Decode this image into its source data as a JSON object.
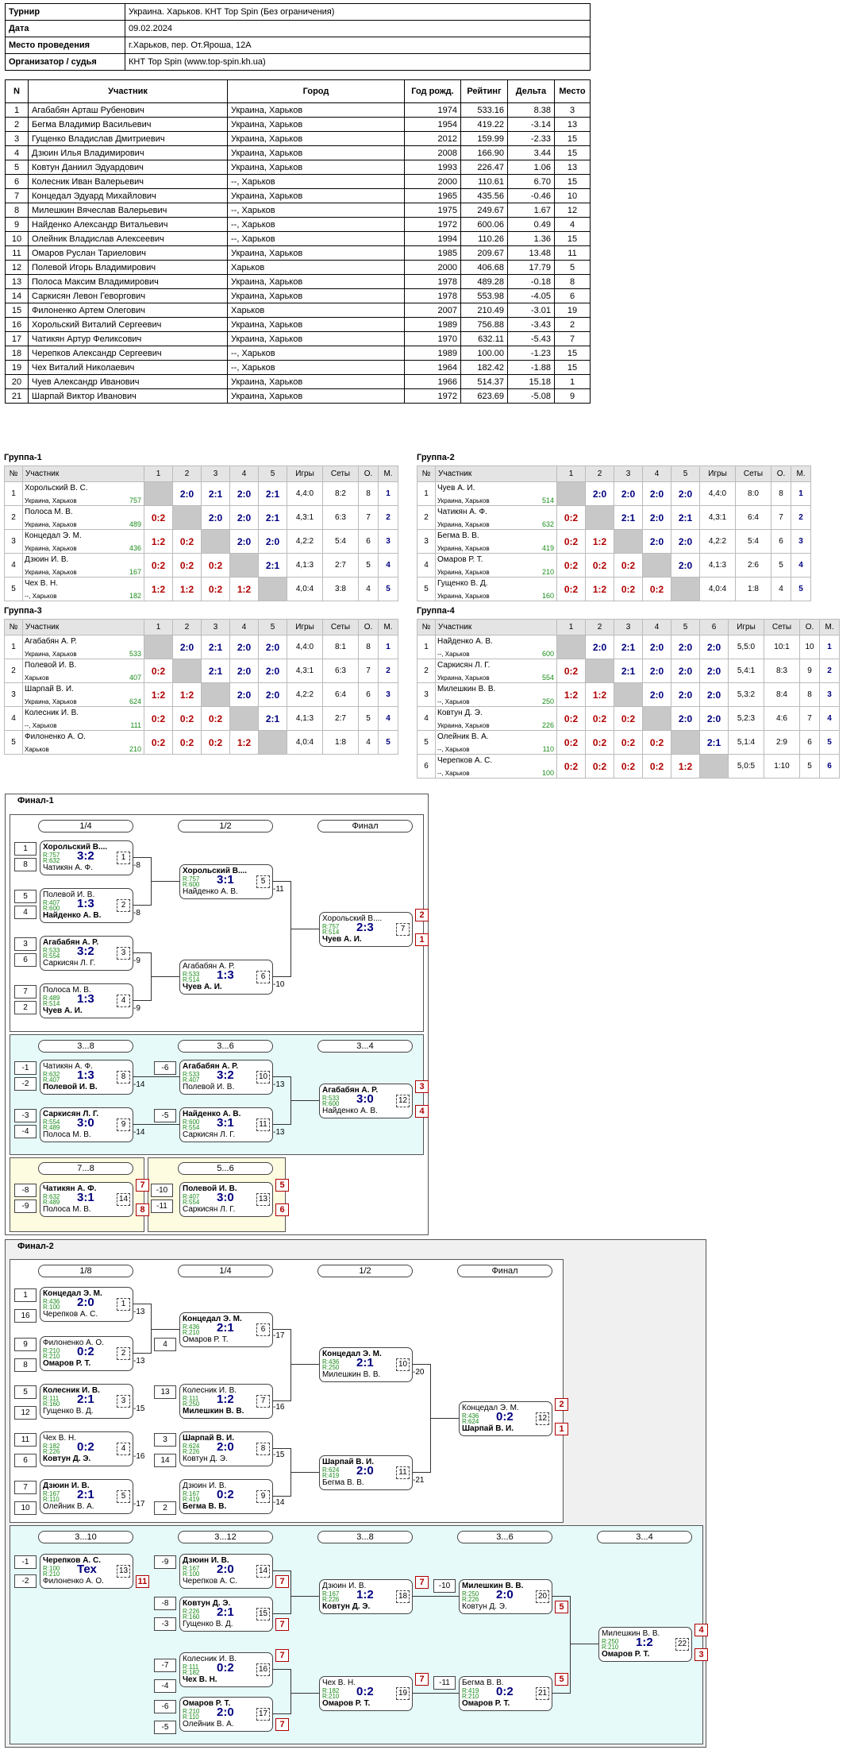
{
  "info": [
    {
      "k": "Турнир",
      "v": "Украина. Харьков. КНТ Top Spin (Без ограничения)"
    },
    {
      "k": "Дата",
      "v": "09.02.2024"
    },
    {
      "k": "Место проведения",
      "v": "г.Харьков, пер. От.Ярошa, 12А"
    },
    {
      "k": "Организатор / судья",
      "v": "КНТ Top Spin (www.top-spin.kh.ua)"
    }
  ],
  "list_headers": [
    "N",
    "Участник",
    "Город",
    "Год рожд.",
    "Рейтинг",
    "Дельта",
    "Место"
  ],
  "players": [
    [
      "1",
      "Агабабян Арташ Рубенович",
      "Украина, Харьков",
      "1974",
      "533.16",
      "8.38",
      "3"
    ],
    [
      "2",
      "Бегма Владимир Васильевич",
      "Украина, Харьков",
      "1954",
      "419.22",
      "-3.14",
      "13"
    ],
    [
      "3",
      "Гущенко Владислав Дмитриевич",
      "Украина, Харьков",
      "2012",
      "159.99",
      "-2.33",
      "15"
    ],
    [
      "4",
      "Дзюин Илья Владимирович",
      "Украина, Харьков",
      "2008",
      "166.90",
      "3.44",
      "15"
    ],
    [
      "5",
      "Ковтун Даниил Эдуардович",
      "Украина, Харьков",
      "1993",
      "226.47",
      "1.06",
      "13"
    ],
    [
      "6",
      "Колесник Иван Валерьевич",
      "--, Харьков",
      "2000",
      "110.61",
      "6.70",
      "15"
    ],
    [
      "7",
      "Концедал Эдуард Михайлович",
      "Украина, Харьков",
      "1965",
      "435.56",
      "-0.46",
      "10"
    ],
    [
      "8",
      "Милешкин Вячеслав Валерьевич",
      "--, Харьков",
      "1975",
      "249.67",
      "1.67",
      "12"
    ],
    [
      "9",
      "Найденко Александр Витальевич",
      "--, Харьков",
      "1972",
      "600.06",
      "0.49",
      "4"
    ],
    [
      "10",
      "Олейник Владислав Алексеевич",
      "--, Харьков",
      "1994",
      "110.26",
      "1.36",
      "15"
    ],
    [
      "11",
      "Омаров Руслан Тариелович",
      "Украина, Харьков",
      "1985",
      "209.67",
      "13.48",
      "11"
    ],
    [
      "12",
      "Полевой Игорь Владимирович",
      "Харьков",
      "2000",
      "406.68",
      "17.79",
      "5"
    ],
    [
      "13",
      "Полоса Максим Владимирович",
      "Украина, Харьков",
      "1978",
      "489.28",
      "-0.18",
      "8"
    ],
    [
      "14",
      "Саркисян Левон Геворгович",
      "Украина, Харьков",
      "1978",
      "553.98",
      "-4.05",
      "6"
    ],
    [
      "15",
      "Филоненко Артем Олегович",
      "Харьков",
      "2007",
      "210.49",
      "-3.01",
      "19"
    ],
    [
      "16",
      "Хорольский Виталий Сергеевич",
      "Украина, Харьков",
      "1989",
      "756.88",
      "-3.43",
      "2"
    ],
    [
      "17",
      "Чатикян Артур Феликсович",
      "Украина, Харьков",
      "1970",
      "632.11",
      "-5.43",
      "7"
    ],
    [
      "18",
      "Черепков Александр Сергеевич",
      "--, Харьков",
      "1989",
      "100.00",
      "-1.23",
      "15"
    ],
    [
      "19",
      "Чех Виталий Николаевич",
      "--, Харьков",
      "1964",
      "182.42",
      "-1.88",
      "15"
    ],
    [
      "20",
      "Чуев Александр Иванович",
      "Украина, Харьков",
      "1966",
      "514.37",
      "15.18",
      "1"
    ],
    [
      "21",
      "Шарпай Виктор Иванович",
      "Украина, Харьков",
      "1972",
      "623.69",
      "-5.08",
      "9"
    ]
  ],
  "group_headers": {
    "no": "№",
    "name": "Участник",
    "games": "Игры",
    "sets": "Сеты",
    "pts": "О.",
    "place": "М."
  },
  "groups": [
    {
      "title": "Группа-1",
      "rows": [
        {
          "n": "1",
          "name": "Хорольский В. С.",
          "city": "Украина, Харьков",
          "r": "757",
          "sc": [
            "x",
            "2:0",
            "2:1",
            "2:0",
            "2:1"
          ],
          "g": "4,4:0",
          "s": "8:2",
          "o": "8",
          "m": "1"
        },
        {
          "n": "2",
          "name": "Полоса М. В.",
          "city": "Украина, Харьков",
          "r": "489",
          "sc": [
            "0:2",
            "x",
            "2:0",
            "2:0",
            "2:1"
          ],
          "g": "4,3:1",
          "s": "6:3",
          "o": "7",
          "m": "2"
        },
        {
          "n": "3",
          "name": "Концедал Э. М.",
          "city": "Украина, Харьков",
          "r": "436",
          "sc": [
            "1:2",
            "0:2",
            "x",
            "2:0",
            "2:0"
          ],
          "g": "4,2:2",
          "s": "5:4",
          "o": "6",
          "m": "3"
        },
        {
          "n": "4",
          "name": "Дзюин И. В.",
          "city": "Украина, Харьков",
          "r": "167",
          "sc": [
            "0:2",
            "0:2",
            "0:2",
            "x",
            "2:1"
          ],
          "g": "4,1:3",
          "s": "2:7",
          "o": "5",
          "m": "4"
        },
        {
          "n": "5",
          "name": "Чех В. Н.",
          "city": "--, Харьков",
          "r": "182",
          "sc": [
            "1:2",
            "1:2",
            "0:2",
            "1:2",
            "x"
          ],
          "g": "4,0:4",
          "s": "3:8",
          "o": "4",
          "m": "5"
        }
      ]
    },
    {
      "title": "Группа-2",
      "rows": [
        {
          "n": "1",
          "name": "Чуев А. И.",
          "city": "Украина, Харьков",
          "r": "514",
          "sc": [
            "x",
            "2:0",
            "2:0",
            "2:0",
            "2:0"
          ],
          "g": "4,4:0",
          "s": "8:0",
          "o": "8",
          "m": "1"
        },
        {
          "n": "2",
          "name": "Чатикян А. Ф.",
          "city": "Украина, Харьков",
          "r": "632",
          "sc": [
            "0:2",
            "x",
            "2:1",
            "2:0",
            "2:1"
          ],
          "g": "4,3:1",
          "s": "6:4",
          "o": "7",
          "m": "2"
        },
        {
          "n": "3",
          "name": "Бегма В. В.",
          "city": "Украина, Харьков",
          "r": "419",
          "sc": [
            "0:2",
            "1:2",
            "x",
            "2:0",
            "2:0"
          ],
          "g": "4,2:2",
          "s": "5:4",
          "o": "6",
          "m": "3"
        },
        {
          "n": "4",
          "name": "Омаров Р. Т.",
          "city": "Украина, Харьков",
          "r": "210",
          "sc": [
            "0:2",
            "0:2",
            "0:2",
            "x",
            "2:0"
          ],
          "g": "4,1:3",
          "s": "2:6",
          "o": "5",
          "m": "4"
        },
        {
          "n": "5",
          "name": "Гущенко В. Д.",
          "city": "Украина, Харьков",
          "r": "160",
          "sc": [
            "0:2",
            "1:2",
            "0:2",
            "0:2",
            "x"
          ],
          "g": "4,0:4",
          "s": "1:8",
          "o": "4",
          "m": "5"
        }
      ]
    },
    {
      "title": "Группа-3",
      "rows": [
        {
          "n": "1",
          "name": "Агабабян А. Р.",
          "city": "Украина, Харьков",
          "r": "533",
          "sc": [
            "x",
            "2:0",
            "2:1",
            "2:0",
            "2:0"
          ],
          "g": "4,4:0",
          "s": "8:1",
          "o": "8",
          "m": "1"
        },
        {
          "n": "2",
          "name": "Полевой И. В.",
          "city": "Харьков",
          "r": "407",
          "sc": [
            "0:2",
            "x",
            "2:1",
            "2:0",
            "2:0"
          ],
          "g": "4,3:1",
          "s": "6:3",
          "o": "7",
          "m": "2"
        },
        {
          "n": "3",
          "name": "Шарпай В. И.",
          "city": "Украина, Харьков",
          "r": "624",
          "sc": [
            "1:2",
            "1:2",
            "x",
            "2:0",
            "2:0"
          ],
          "g": "4,2:2",
          "s": "6:4",
          "o": "6",
          "m": "3"
        },
        {
          "n": "4",
          "name": "Колесник И. В.",
          "city": "--, Харьков",
          "r": "111",
          "sc": [
            "0:2",
            "0:2",
            "0:2",
            "x",
            "2:1"
          ],
          "g": "4,1:3",
          "s": "2:7",
          "o": "5",
          "m": "4"
        },
        {
          "n": "5",
          "name": "Филоненко А. О.",
          "city": "Харьков",
          "r": "210",
          "sc": [
            "0:2",
            "0:2",
            "0:2",
            "1:2",
            "x"
          ],
          "g": "4,0:4",
          "s": "1:8",
          "o": "4",
          "m": "5"
        }
      ]
    },
    {
      "title": "Группа-4",
      "rows": [
        {
          "n": "1",
          "name": "Найденко А. В.",
          "city": "--, Харьков",
          "r": "600",
          "sc": [
            "x",
            "2:0",
            "2:1",
            "2:0",
            "2:0",
            "2:0"
          ],
          "g": "5,5:0",
          "s": "10:1",
          "o": "10",
          "m": "1"
        },
        {
          "n": "2",
          "name": "Саркисян Л. Г.",
          "city": "Украина, Харьков",
          "r": "554",
          "sc": [
            "0:2",
            "x",
            "2:1",
            "2:0",
            "2:0",
            "2:0"
          ],
          "g": "5,4:1",
          "s": "8:3",
          "o": "9",
          "m": "2"
        },
        {
          "n": "3",
          "name": "Милешкин В. В.",
          "city": "--, Харьков",
          "r": "250",
          "sc": [
            "1:2",
            "1:2",
            "x",
            "2:0",
            "2:0",
            "2:0"
          ],
          "g": "5,3:2",
          "s": "8:4",
          "o": "8",
          "m": "3"
        },
        {
          "n": "4",
          "name": "Ковтун Д. Э.",
          "city": "Украина, Харьков",
          "r": "226",
          "sc": [
            "0:2",
            "0:2",
            "0:2",
            "x",
            "2:0",
            "2:0"
          ],
          "g": "5,2:3",
          "s": "4:6",
          "o": "7",
          "m": "4"
        },
        {
          "n": "5",
          "name": "Олейник В. А.",
          "city": "--, Харьков",
          "r": "110",
          "sc": [
            "0:2",
            "0:2",
            "0:2",
            "0:2",
            "x",
            "2:1"
          ],
          "g": "5,1:4",
          "s": "2:9",
          "o": "6",
          "m": "5"
        },
        {
          "n": "6",
          "name": "Черепков А. С.",
          "city": "--, Харьков",
          "r": "100",
          "sc": [
            "0:2",
            "0:2",
            "0:2",
            "0:2",
            "1:2",
            "x"
          ],
          "g": "5,0:5",
          "s": "1:10",
          "o": "5",
          "m": "6"
        }
      ]
    }
  ],
  "final1": {
    "title": "Финал-1",
    "headers": [
      "1/4",
      "1/2",
      "Финал",
      "3...8",
      "3...6",
      "3...4",
      "7...8",
      "5...6"
    ],
    "seeds": [
      "1",
      "8",
      "5",
      "4",
      "3",
      "6",
      "7",
      "2",
      "-1",
      "-2",
      "-3",
      "-4",
      "-6",
      "-5",
      "-8",
      "-9",
      "-10",
      "-11"
    ],
    "tags": [
      "-8",
      "-8",
      "-9",
      "-9",
      "-11",
      "-10",
      "-14",
      "-14",
      "-13",
      "-13"
    ],
    "matches": [
      {
        "a": "Хорольский В....",
        "ra": "R:757",
        "rb": "R:632",
        "b": "Чатикян А. Ф.",
        "s": "3:2",
        "n": "1",
        "w": "a"
      },
      {
        "a": "Полевой И. В.",
        "ra": "R:407",
        "rb": "R:600",
        "b": "Найденко А. В.",
        "s": "1:3",
        "n": "2",
        "w": "b"
      },
      {
        "a": "Агабабян А. Р.",
        "ra": "R:533",
        "rb": "R:554",
        "b": "Саркисян Л. Г.",
        "s": "3:2",
        "n": "3",
        "w": "a"
      },
      {
        "a": "Полоса М. В.",
        "ra": "R:489",
        "rb": "R:514",
        "b": "Чуев А. И.",
        "s": "1:3",
        "n": "4",
        "w": "b"
      },
      {
        "a": "Хорольский В....",
        "ra": "R:757",
        "rb": "R:600",
        "b": "Найденко А. В.",
        "s": "3:1",
        "n": "5",
        "w": "a"
      },
      {
        "a": "Агабабян А. Р.",
        "ra": "R:533",
        "rb": "R:514",
        "b": "Чуев А. И.",
        "s": "1:3",
        "n": "6",
        "w": "b"
      },
      {
        "a": "Хорольский В....",
        "ra": "R:757",
        "rb": "R:514",
        "b": "Чуев А. И.",
        "s": "2:3",
        "n": "7",
        "w": "b",
        "pa": "2",
        "pb": "1"
      },
      {
        "a": "Чатикян А. Ф.",
        "ra": "R:632",
        "rb": "R:407",
        "b": "Полевой И. В.",
        "s": "1:3",
        "n": "8",
        "w": "b"
      },
      {
        "a": "Саркисян Л. Г.",
        "ra": "R:554",
        "rb": "R:489",
        "b": "Полоса М. В.",
        "s": "3:0",
        "n": "9",
        "w": "a"
      },
      {
        "a": "Агабабян А. Р.",
        "ra": "R:533",
        "rb": "R:407",
        "b": "Полевой И. В.",
        "s": "3:2",
        "n": "10",
        "w": "a"
      },
      {
        "a": "Найденко А. В.",
        "ra": "R:600",
        "rb": "R:554",
        "b": "Саркисян Л. Г.",
        "s": "3:1",
        "n": "11",
        "w": "a"
      },
      {
        "a": "Агабабян А. Р.",
        "ra": "R:533",
        "rb": "R:600",
        "b": "Найденко А. В.",
        "s": "3:0",
        "n": "12",
        "w": "a",
        "pa": "3",
        "pb": "4"
      },
      {
        "a": "Чатикян А. Ф.",
        "ra": "R:632",
        "rb": "R:489",
        "b": "Полоса М. В.",
        "s": "3:1",
        "n": "14",
        "w": "a",
        "pa": "7",
        "pb": "8"
      },
      {
        "a": "Полевой И. В.",
        "ra": "R:407",
        "rb": "R:554",
        "b": "Саркисян Л. Г.",
        "s": "3:0",
        "n": "13",
        "w": "a",
        "pa": "5",
        "pb": "6"
      }
    ]
  },
  "final2": {
    "title": "Финал-2",
    "headers": [
      "1/8",
      "1/4",
      "1/2",
      "Финал",
      "3...10",
      "3...12",
      "3...8",
      "3...6",
      "3...4"
    ],
    "seeds": [
      "1",
      "16",
      "9",
      "8",
      "5",
      "12",
      "11",
      "6",
      "7",
      "10",
      "4",
      "13",
      "3",
      "14",
      "2",
      "-1",
      "-2",
      "-9",
      "-8",
      "-3",
      "-7",
      "-4",
      "-6",
      "-5",
      "-10",
      "-11"
    ],
    "tags": [
      "-13",
      "-13",
      "-15",
      "-16",
      "-17",
      "-17",
      "-16",
      "-15",
      "-14",
      "-20",
      "-21"
    ],
    "matches": [
      {
        "a": "Концедал Э. М.",
        "ra": "R:436",
        "rb": "R:100",
        "b": "Черепков А. С.",
        "s": "2:0",
        "n": "1",
        "w": "a"
      },
      {
        "a": "Филоненко А. О.",
        "ra": "R:210",
        "rb": "R:210",
        "b": "Омаров Р. Т.",
        "s": "0:2",
        "n": "2",
        "w": "b"
      },
      {
        "a": "Колесник И. В.",
        "ra": "R:111",
        "rb": "R:160",
        "b": "Гущенко В. Д.",
        "s": "2:1",
        "n": "3",
        "w": "a"
      },
      {
        "a": "Чех В. Н.",
        "ra": "R:182",
        "rb": "R:226",
        "b": "Ковтун Д. Э.",
        "s": "0:2",
        "n": "4",
        "w": "b"
      },
      {
        "a": "Дзюин И. В.",
        "ra": "R:167",
        "rb": "R:110",
        "b": "Олейник В. А.",
        "s": "2:1",
        "n": "5",
        "w": "a"
      },
      {
        "a": "Концедал Э. М.",
        "ra": "R:436",
        "rb": "R:210",
        "b": "Омаров Р. Т.",
        "s": "2:1",
        "n": "6",
        "w": "a"
      },
      {
        "a": "Колесник И. В.",
        "ra": "R:111",
        "rb": "R:250",
        "b": "Милешкин В. В.",
        "s": "1:2",
        "n": "7",
        "w": "b"
      },
      {
        "a": "Шарпай В. И.",
        "ra": "R:624",
        "rb": "R:226",
        "b": "Ковтун Д. Э.",
        "s": "2:0",
        "n": "8",
        "w": "a"
      },
      {
        "a": "Дзюин И. В.",
        "ra": "R:167",
        "rb": "R:419",
        "b": "Бегма В. В.",
        "s": "0:2",
        "n": "9",
        "w": "b"
      },
      {
        "a": "Концедал Э. М.",
        "ra": "R:436",
        "rb": "R:250",
        "b": "Милешкин В. В.",
        "s": "2:1",
        "n": "10",
        "w": "a"
      },
      {
        "a": "Шарпай В. И.",
        "ra": "R:624",
        "rb": "R:419",
        "b": "Бегма В. В.",
        "s": "2:0",
        "n": "11",
        "w": "a"
      },
      {
        "a": "Концедал Э. М.",
        "ra": "R:436",
        "rb": "R:624",
        "b": "Шарпай В. И.",
        "s": "0:2",
        "n": "12",
        "w": "b",
        "pa": "2",
        "pb": "1"
      },
      {
        "a": "Черепков А. С.",
        "ra": "R:100",
        "rb": "R:210",
        "b": "Филоненко А. О.",
        "s": "Тех",
        "n": "13",
        "w": "a",
        "pb": "11"
      },
      {
        "a": "Дзюин И. В.",
        "ra": "R:167",
        "rb": "R:100",
        "b": "Черепков А. С.",
        "s": "2:0",
        "n": "14",
        "w": "a",
        "pb": "7"
      },
      {
        "a": "Ковтун Д. Э.",
        "ra": "R:226",
        "rb": "R:160",
        "b": "Гущенко В. Д.",
        "s": "2:1",
        "n": "15",
        "w": "a",
        "pb": "7"
      },
      {
        "a": "Колесник И. В.",
        "ra": "R:111",
        "rb": "R:182",
        "b": "Чех В. Н.",
        "s": "0:2",
        "n": "16",
        "w": "b",
        "pa": "7"
      },
      {
        "a": "Омаров Р. Т.",
        "ra": "R:210",
        "rb": "R:110",
        "b": "Олейник В. А.",
        "s": "2:0",
        "n": "17",
        "w": "a",
        "pb": "7"
      },
      {
        "a": "Дзюин И. В.",
        "ra": "R:167",
        "rb": "R:226",
        "b": "Ковтун Д. Э.",
        "s": "1:2",
        "n": "18",
        "w": "b",
        "pa": "7"
      },
      {
        "a": "Чех В. Н.",
        "ra": "R:182",
        "rb": "R:210",
        "b": "Омаров Р. Т.",
        "s": "0:2",
        "n": "19",
        "w": "b",
        "pa": "7"
      },
      {
        "a": "Милешкин В. В.",
        "ra": "R:250",
        "rb": "R:226",
        "b": "Ковтун Д. Э.",
        "s": "2:0",
        "n": "20",
        "w": "a",
        "pb": "5"
      },
      {
        "a": "Бегма В. В.",
        "ra": "R:419",
        "rb": "R:210",
        "b": "Омаров Р. Т.",
        "s": "0:2",
        "n": "21",
        "w": "b",
        "pa": "5"
      },
      {
        "a": "Милешкин В. В.",
        "ra": "R:250",
        "rb": "R:210",
        "b": "Омаров Р. Т.",
        "s": "1:2",
        "n": "22",
        "w": "b",
        "pa": "4",
        "pb": "3"
      }
    ]
  }
}
